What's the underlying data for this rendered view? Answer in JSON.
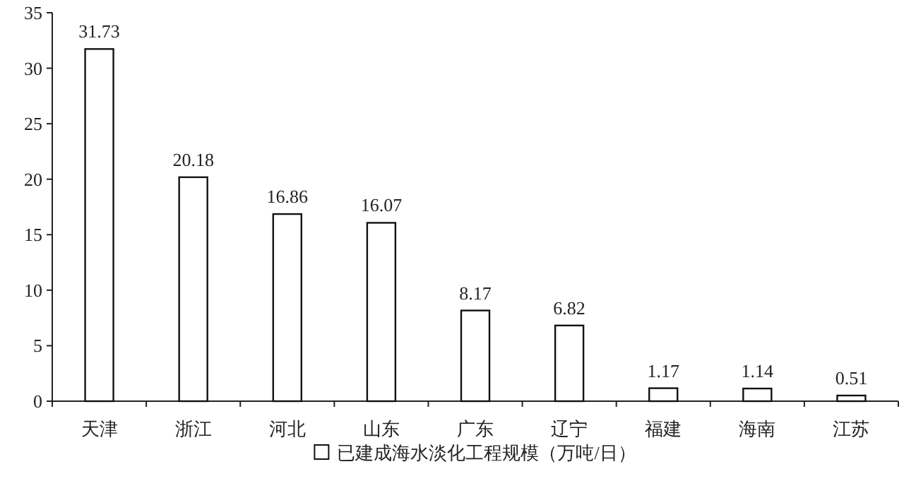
{
  "chart_data": {
    "type": "bar",
    "categories": [
      "天津",
      "浙江",
      "河北",
      "山东",
      "广东",
      "辽宁",
      "福建",
      "海南",
      "江苏"
    ],
    "series": [
      {
        "name": "已建成海水淡化工程规模（万吨/日）",
        "color": "#ffffff",
        "values": [
          31.73,
          20.18,
          16.86,
          16.07,
          8.17,
          6.82,
          1.17,
          1.14,
          0.51
        ]
      }
    ],
    "ylim": [
      0,
      35
    ],
    "yticks": [
      0,
      5,
      10,
      15,
      20,
      25,
      30,
      35
    ],
    "data_labels": true,
    "legend": "bottom"
  }
}
